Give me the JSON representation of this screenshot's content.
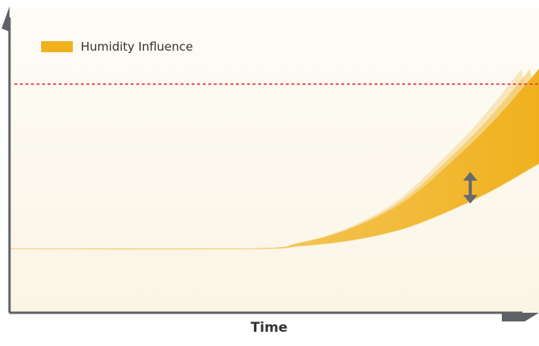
{
  "chart_data": {
    "type": "area",
    "title": "",
    "xlabel": "Time",
    "ylabel": "",
    "xlim": [
      0,
      100
    ],
    "ylim": [
      0,
      100
    ],
    "grid": false,
    "legend": {
      "placement": "top-left",
      "entries": [
        "Humidity Influence"
      ]
    },
    "reference_line": {
      "y": 75,
      "style": "dotted",
      "color": "#e8454a"
    },
    "series": [
      {
        "name": "Humidity Influence",
        "color": "#f0b11d",
        "x": [
          0,
          45,
          55,
          65,
          75,
          85,
          92,
          100
        ],
        "upper": [
          21,
          21,
          23,
          28,
          37,
          52,
          64,
          80
        ],
        "lower": [
          21,
          21,
          22,
          24,
          28,
          35,
          41,
          49
        ]
      }
    ],
    "annotations": [
      {
        "type": "double-arrow",
        "x": 87,
        "y": 41,
        "meaning": "variation range"
      }
    ]
  },
  "colors": {
    "background": "#fcf8ee",
    "axis": "#5e6266",
    "band": "#f0b11d",
    "reference": "#e8454a",
    "text": "#333333"
  }
}
